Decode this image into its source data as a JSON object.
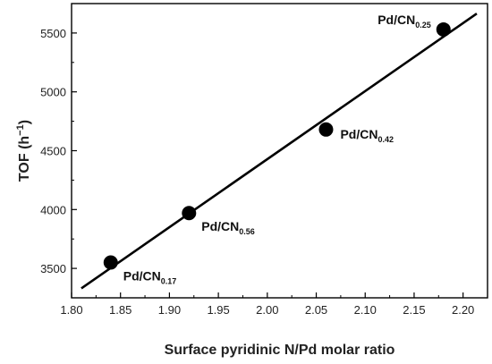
{
  "chart_data": {
    "type": "scatter",
    "xlabel": "Surface pyridinic N/Pd molar ratio",
    "ylabel_main": "TOF (h",
    "ylabel_sup": "−1",
    "ylabel_close": ")",
    "xlim": [
      1.8,
      2.225
    ],
    "ylim": [
      3250,
      5750
    ],
    "xticks": [
      "1.80",
      "1.85",
      "1.90",
      "1.95",
      "2.00",
      "2.05",
      "2.10",
      "2.15",
      "2.20"
    ],
    "yticks": [
      "3500",
      "4000",
      "4500",
      "5000",
      "5500"
    ],
    "points": [
      {
        "x": 1.84,
        "y": 3550,
        "label": "Pd/CN",
        "sub": "0.17",
        "label_pos": "bottom-right"
      },
      {
        "x": 1.92,
        "y": 3970,
        "label": "Pd/CN",
        "sub": "0.56",
        "label_pos": "bottom-right"
      },
      {
        "x": 2.06,
        "y": 4680,
        "label": "Pd/CN",
        "sub": "0.42",
        "label_pos": "right"
      },
      {
        "x": 2.18,
        "y": 5530,
        "label": "Pd/CN",
        "sub": "0.25",
        "label_pos": "top-left"
      }
    ],
    "fit_line": {
      "x1": 1.81,
      "y1": 3330,
      "x2": 2.214,
      "y2": 5665
    },
    "grid": false,
    "colors": {
      "marker": "#000000",
      "line": "#000000",
      "axis": "#000000"
    }
  }
}
